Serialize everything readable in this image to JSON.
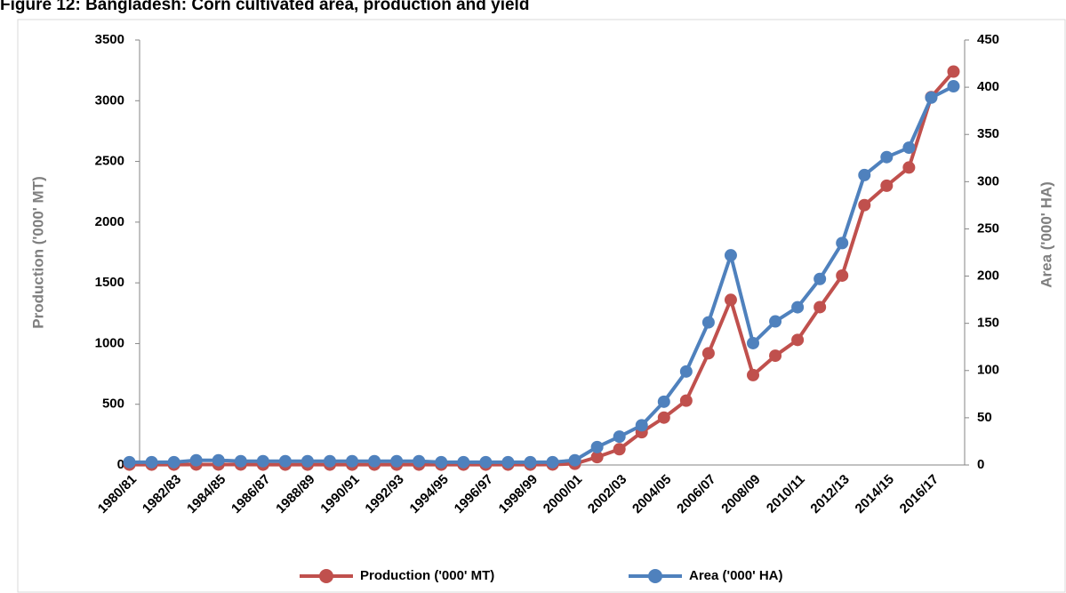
{
  "chart_data": {
    "type": "line",
    "title": "Figure 12: Bangladesh: Corn cultivated area, production and yield",
    "y_label": "Production ('000' MT)",
    "y2_label": "Area ('000' HA)",
    "categories": [
      "1980/81",
      null,
      "1982/83",
      null,
      "1984/85",
      null,
      "1986/87",
      null,
      "1988/89",
      null,
      "1990/91",
      null,
      "1992/93",
      null,
      "1994/95",
      null,
      "1996/97",
      null,
      "1998/99",
      null,
      "2000/01",
      null,
      "2002/03",
      null,
      "2004/05",
      null,
      "2006/07",
      null,
      "2008/09",
      null,
      "2010/11",
      null,
      "2012/13",
      null,
      "2014/15",
      null,
      "2016/17",
      null
    ],
    "series": [
      {
        "name": "Production ('000' MT)",
        "color": "#c0504d",
        "values": [
          3,
          3,
          3,
          4,
          4,
          4,
          3,
          3,
          3,
          3,
          3,
          3,
          3,
          3,
          3,
          3,
          3,
          3,
          3,
          4,
          10,
          65,
          130,
          270,
          390,
          530,
          920,
          1360,
          740,
          900,
          1030,
          1300,
          1560,
          2140,
          2300,
          2450,
          3030,
          3240
        ]
      },
      {
        "name": "Area ('000' HA)",
        "color": "#4f81bd",
        "axis": "y2",
        "values": [
          3,
          3,
          3,
          5,
          5,
          4,
          4,
          4,
          4,
          4,
          4,
          4,
          4,
          4,
          3,
          3,
          3,
          3,
          3,
          3,
          5,
          19,
          30,
          42,
          67,
          99,
          151,
          222,
          129,
          152,
          167,
          197,
          235,
          307,
          326,
          336,
          389,
          401
        ]
      }
    ],
    "ylim": [
      0,
      3500
    ],
    "yticks": [
      0,
      500,
      1000,
      1500,
      2000,
      2500,
      3000,
      3500
    ],
    "y2lim": [
      0,
      450
    ],
    "y2ticks": [
      0,
      50,
      100,
      150,
      200,
      250,
      300,
      350,
      400,
      450
    ],
    "legend": "bottom"
  }
}
